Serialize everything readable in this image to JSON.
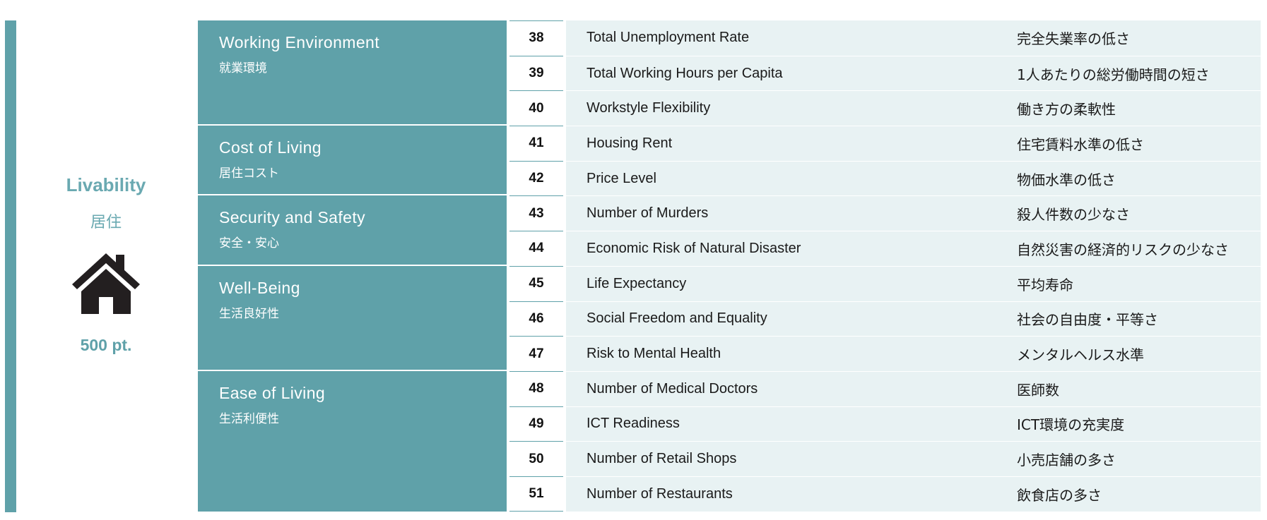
{
  "section": {
    "title": "Livability",
    "subtitle": "居住",
    "icon": "house-icon",
    "points": "500 pt."
  },
  "categories": [
    {
      "en": "Working Environment",
      "ja": "就業環境",
      "count": 3
    },
    {
      "en": "Cost of Living",
      "ja": "居住コスト",
      "count": 2
    },
    {
      "en": "Security and Safety",
      "ja": "安全・安心",
      "count": 2
    },
    {
      "en": "Well-Being",
      "ja": "生活良好性",
      "count": 3
    },
    {
      "en": "Ease of Living",
      "ja": "生活利便性",
      "count": 4
    }
  ],
  "indicators": [
    {
      "num": "38",
      "en": "Total Unemployment Rate",
      "ja": "完全失業率の低さ"
    },
    {
      "num": "39",
      "en": "Total Working Hours per Capita",
      "ja": "1人あたりの総労働時間の短さ"
    },
    {
      "num": "40",
      "en": "Workstyle Flexibility",
      "ja": "働き方の柔軟性"
    },
    {
      "num": "41",
      "en": "Housing Rent",
      "ja": "住宅賃料水準の低さ"
    },
    {
      "num": "42",
      "en": "Price Level",
      "ja": "物価水準の低さ"
    },
    {
      "num": "43",
      "en": "Number of Murders",
      "ja": "殺人件数の少なさ"
    },
    {
      "num": "44",
      "en": "Economic Risk of Natural Disaster",
      "ja": "自然災害の経済的リスクの少なさ"
    },
    {
      "num": "45",
      "en": "Life Expectancy",
      "ja": "平均寿命"
    },
    {
      "num": "46",
      "en": "Social Freedom and Equality",
      "ja": "社会の自由度・平等さ"
    },
    {
      "num": "47",
      "en": "Risk to Mental Health",
      "ja": "メンタルヘルス水準"
    },
    {
      "num": "48",
      "en": "Number of Medical Doctors",
      "ja": "医師数"
    },
    {
      "num": "49",
      "en": "ICT Readiness",
      "ja": "ICT環境の充実度"
    },
    {
      "num": "50",
      "en": "Number of Retail Shops",
      "ja": "小売店舗の多さ"
    },
    {
      "num": "51",
      "en": "Number of Restaurants",
      "ja": "飲食店の多さ"
    }
  ],
  "colors": {
    "teal": "#5fa1a9",
    "row_bg": "#e8f2f3",
    "accent_text": "#6aa9b1"
  }
}
